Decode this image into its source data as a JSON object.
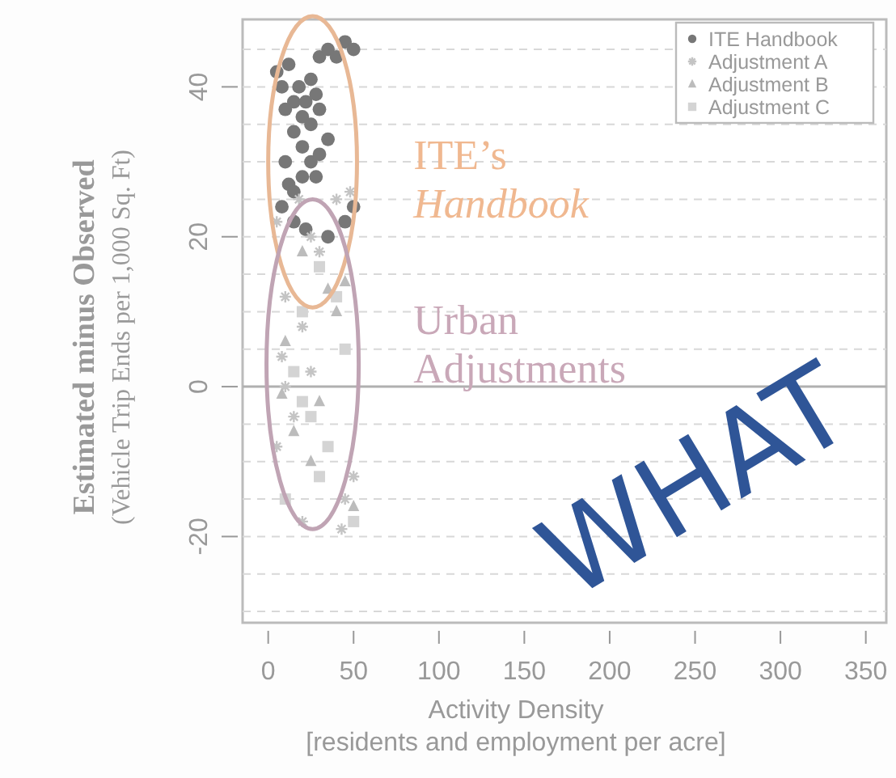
{
  "chart_data": {
    "type": "scatter",
    "xlabel": "Activity Density\n[residents and employment per acre]",
    "ylabel": "Estimated minus Observed\n(Vehicle Trip Ends per 1,000 Sq. Ft)",
    "xlim": [
      -15,
      362
    ],
    "ylim": [
      -31.5,
      49
    ],
    "xticks": [
      0,
      50,
      100,
      150,
      200,
      250,
      300,
      350
    ],
    "yticks": [
      {
        "value": -30,
        "label": null
      },
      {
        "value": -25,
        "label": null
      },
      -20,
      {
        "value": -15,
        "label": null
      },
      {
        "value": -10,
        "label": null
      },
      {
        "value": -5,
        "label": null
      },
      0,
      {
        "value": 5,
        "label": null
      },
      {
        "value": 10,
        "label": null
      },
      {
        "value": 15,
        "label": null
      },
      20,
      {
        "value": 25,
        "label": null
      },
      {
        "value": 30,
        "label": null
      },
      {
        "value": 35,
        "label": null
      },
      40,
      {
        "value": 45,
        "label": null
      }
    ],
    "grid": "y",
    "legend": "top right",
    "ref_lines": [
      {
        "axis": "y",
        "value": 0,
        "label": null,
        "color": "#b0b0b0",
        "line_style": "solid"
      }
    ],
    "annotations": [
      "ITE’s\nHandbook",
      "Urban\nAdjustments",
      "WHAT"
    ],
    "series": [
      {
        "name": "ITE Handbook",
        "color": "#777777",
        "marker": "circle",
        "x": [
          5,
          8,
          12,
          15,
          18,
          20,
          22,
          25,
          28,
          30,
          35,
          40,
          45,
          50,
          25,
          30,
          10,
          15,
          20,
          25,
          28,
          30,
          35,
          10,
          12,
          15,
          20,
          8,
          15,
          22,
          50,
          45,
          35
        ],
        "values": [
          42,
          40,
          43,
          38,
          40,
          36,
          38,
          41,
          39,
          44,
          45,
          44,
          46,
          45,
          35,
          37,
          37,
          34,
          32,
          30,
          28,
          31,
          33,
          30,
          27,
          26,
          28,
          24,
          22,
          21,
          24,
          22,
          20
        ]
      },
      {
        "name": "Adjustment A",
        "color": "#c4c4c4",
        "marker": "cross",
        "x": [
          5,
          18,
          25,
          40,
          48,
          30,
          10,
          20,
          8,
          25,
          15,
          5,
          50,
          43,
          20,
          45,
          10
        ],
        "values": [
          22,
          25,
          20,
          25,
          26,
          18,
          12,
          8,
          4,
          2,
          -4,
          -8,
          -12,
          -19,
          -18,
          -15,
          0
        ]
      },
      {
        "name": "Adjustment B",
        "color": "#bcbcbc",
        "marker": "triangle",
        "x": [
          20,
          35,
          45,
          10,
          30,
          15,
          25,
          50,
          40,
          8
        ],
        "values": [
          18,
          13,
          14,
          6,
          -2,
          -6,
          -10,
          -16,
          10,
          -1
        ]
      },
      {
        "name": "Adjustment C",
        "color": "#d4d4d4",
        "marker": "square",
        "x": [
          30,
          40,
          45,
          20,
          15,
          25,
          30,
          10,
          50,
          35,
          20
        ],
        "values": [
          16,
          12,
          5,
          10,
          2,
          -4,
          -12,
          -15,
          -18,
          -8,
          -2
        ]
      }
    ]
  }
}
